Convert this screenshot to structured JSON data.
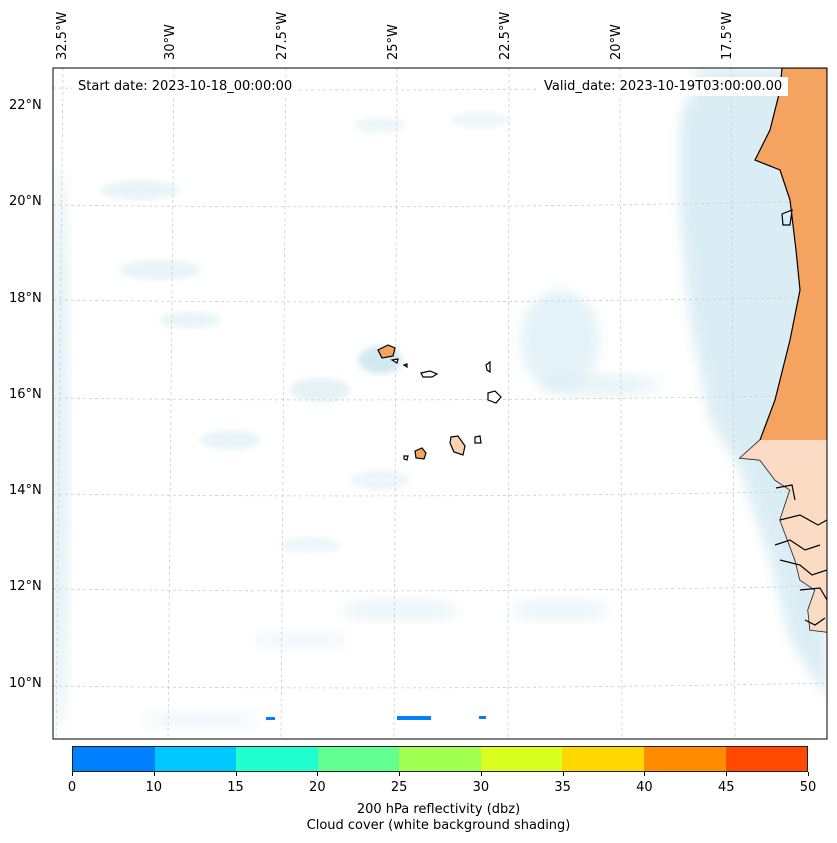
{
  "map": {
    "start_date": "Start date: 2023-10-18_00:00:00",
    "valid_date": "Valid_date: 2023-10-19T03:00:00.00",
    "lon_labels": [
      "32.5°W",
      "30°W",
      "27.5°W",
      "25°W",
      "22.5°W",
      "20°W",
      "17.5°W"
    ],
    "lat_labels": [
      "22°N",
      "20°N",
      "18°N",
      "16°N",
      "14°N",
      "12°N",
      "10°N"
    ],
    "land_color": "#f4a460",
    "cloud_color": "#add8e6"
  },
  "colorbar": {
    "colors": [
      "#0080ff",
      "#00c8ff",
      "#20ffd0",
      "#60ff90",
      "#a0ff50",
      "#d8ff20",
      "#ffd800",
      "#ff8c00",
      "#ff4a00"
    ],
    "ticks": [
      "0",
      "10",
      "15",
      "20",
      "25",
      "30",
      "35",
      "40",
      "45",
      "50"
    ],
    "label_line1": "200 hPa reflectivity (dbz)",
    "label_line2": "Cloud cover (white background shading)"
  }
}
